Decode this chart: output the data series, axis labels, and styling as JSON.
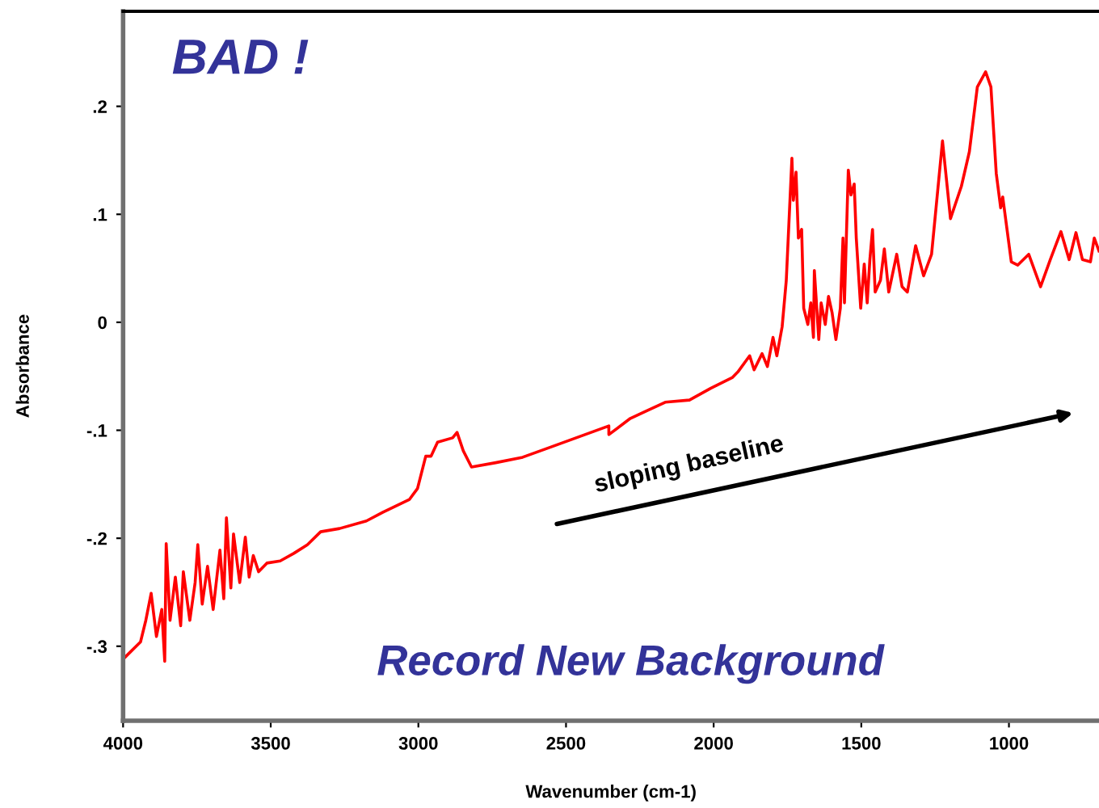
{
  "chart_data": {
    "type": "line",
    "xlabel": "Wavenumber (cm-1)",
    "ylabel": "Absorbance",
    "annotations": [
      "BAD !",
      "Record New Background",
      "sloping baseline"
    ],
    "xlim": [
      4000,
      695
    ],
    "xticks": [
      4000,
      3500,
      3000,
      2500,
      2000,
      1500,
      1000
    ],
    "ylim": [
      -0.369,
      0.288
    ],
    "yticks": [
      {
        "value": 0.2,
        "label": ".2"
      },
      {
        "value": 0.1,
        "label": ".1"
      },
      0,
      {
        "value": -0.1,
        "label": "-.1"
      },
      {
        "value": -0.2,
        "label": "-.2"
      },
      {
        "value": -0.3,
        "label": "-.3"
      }
    ],
    "grid": false,
    "legend": false,
    "marker": "none",
    "line_style": "solid",
    "series": [
      {
        "color": "#ff0000",
        "x": [
          4000,
          3941,
          3923,
          3905,
          3887,
          3869,
          3859,
          3854,
          3841,
          3823,
          3805,
          3796,
          3774,
          3756,
          3747,
          3732,
          3714,
          3695,
          3672,
          3659,
          3650,
          3635,
          3626,
          3605,
          3586,
          3573,
          3559,
          3541,
          3513,
          3468,
          3422,
          3376,
          3331,
          3267,
          3176,
          3121,
          3030,
          3003,
          2975,
          2957,
          2935,
          2884,
          2869,
          2848,
          2820,
          2738,
          2647,
          2556,
          2355,
          2355,
          2282,
          2164,
          2082,
          2009,
          1936,
          1918,
          1878,
          1863,
          1836,
          1818,
          1799,
          1786,
          1768,
          1754,
          1735,
          1730,
          1721,
          1713,
          1702,
          1695,
          1681,
          1671,
          1662,
          1659,
          1644,
          1636,
          1622,
          1611,
          1599,
          1586,
          1571,
          1562,
          1557,
          1544,
          1535,
          1524,
          1517,
          1502,
          1490,
          1480,
          1471,
          1462,
          1453,
          1435,
          1422,
          1407,
          1380,
          1362,
          1344,
          1316,
          1289,
          1262,
          1225,
          1198,
          1161,
          1134,
          1107,
          1079,
          1061,
          1043,
          1028,
          1021,
          992,
          970,
          933,
          893,
          860,
          824,
          796,
          773,
          751,
          724,
          711,
          695
        ],
        "values": [
          -0.312,
          -0.296,
          -0.276,
          -0.251,
          -0.291,
          -0.266,
          -0.314,
          -0.205,
          -0.276,
          -0.236,
          -0.281,
          -0.231,
          -0.276,
          -0.241,
          -0.206,
          -0.261,
          -0.226,
          -0.266,
          -0.211,
          -0.256,
          -0.181,
          -0.246,
          -0.196,
          -0.241,
          -0.199,
          -0.236,
          -0.216,
          -0.231,
          -0.223,
          -0.221,
          -0.214,
          -0.206,
          -0.194,
          -0.191,
          -0.184,
          -0.176,
          -0.164,
          -0.154,
          -0.124,
          -0.124,
          -0.111,
          -0.107,
          -0.102,
          -0.119,
          -0.134,
          -0.13,
          -0.125,
          -0.116,
          -0.096,
          -0.104,
          -0.089,
          -0.074,
          -0.072,
          -0.061,
          -0.051,
          -0.046,
          -0.031,
          -0.044,
          -0.029,
          -0.041,
          -0.014,
          -0.031,
          -0.004,
          0.039,
          0.152,
          0.113,
          0.139,
          0.078,
          0.086,
          0.013,
          -0.002,
          0.018,
          -0.014,
          0.048,
          -0.016,
          0.018,
          -0.002,
          0.024,
          0.009,
          -0.016,
          0.013,
          0.078,
          0.018,
          0.141,
          0.118,
          0.128,
          0.078,
          0.013,
          0.054,
          0.018,
          0.058,
          0.086,
          0.028,
          0.039,
          0.068,
          0.028,
          0.063,
          0.033,
          0.028,
          0.071,
          0.043,
          0.063,
          0.168,
          0.096,
          0.126,
          0.158,
          0.218,
          0.232,
          0.218,
          0.138,
          0.106,
          0.116,
          0.056,
          0.053,
          0.063,
          0.033,
          0.058,
          0.084,
          0.058,
          0.083,
          0.058,
          0.056,
          0.078,
          0.066
        ]
      }
    ]
  }
}
